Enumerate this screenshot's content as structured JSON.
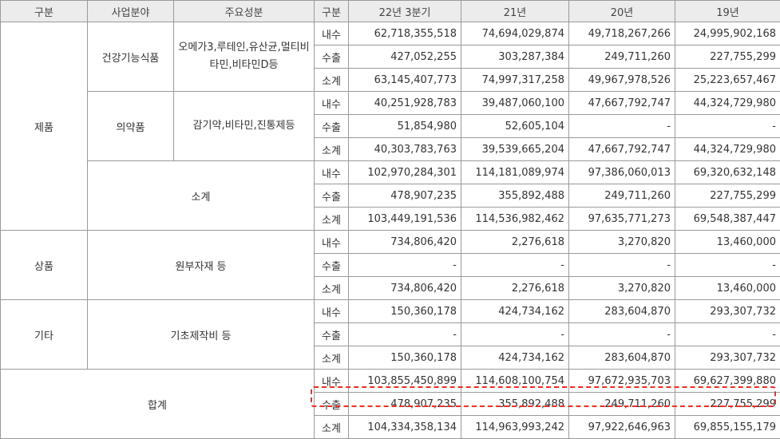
{
  "headers": [
    "구분",
    "사업분야",
    "주요성분",
    "구분",
    "22년 3분기",
    "21년",
    "20년",
    "19년"
  ],
  "groups": {
    "product": "제품",
    "goods": "상품",
    "other": "기타",
    "total": "합계"
  },
  "fields": {
    "health_food": "건강기능식품",
    "pharma": "의약품",
    "product_subtotal": "소계",
    "raw_materials": "원부자재 등",
    "basic_cost": "기초제작비 등"
  },
  "components": {
    "health_food": "오메가3,루테인,유산균,멀티비타민,비타민D등",
    "pharma": "감기약,비타민,진통제등"
  },
  "row_labels": {
    "domestic": "내수",
    "export": "수출",
    "subtotal": "소계"
  },
  "rows": [
    {
      "values": [
        "62,718,355,518",
        "74,694,029,874",
        "49,718,267,266",
        "24,995,902,168"
      ]
    },
    {
      "values": [
        "427,052,255",
        "303,287,384",
        "249,711,260",
        "227,755,299"
      ]
    },
    {
      "values": [
        "63,145,407,773",
        "74,997,317,258",
        "49,967,978,526",
        "25,223,657,467"
      ]
    },
    {
      "values": [
        "40,251,928,783",
        "39,487,060,100",
        "47,667,792,747",
        "44,324,729,980"
      ]
    },
    {
      "values": [
        "51,854,980",
        "52,605,104",
        "-",
        "-"
      ]
    },
    {
      "values": [
        "40,303,783,763",
        "39,539,665,204",
        "47,667,792,747",
        "44,324,729,980"
      ]
    },
    {
      "values": [
        "102,970,284,301",
        "114,181,089,974",
        "97,386,060,013",
        "69,320,632,148"
      ]
    },
    {
      "values": [
        "478,907,235",
        "355,892,488",
        "249,711,260",
        "227,755,299"
      ]
    },
    {
      "values": [
        "103,449,191,536",
        "114,536,982,462",
        "97,635,771,273",
        "69,548,387,447"
      ]
    },
    {
      "values": [
        "734,806,420",
        "2,276,618",
        "3,270,820",
        "13,460,000"
      ]
    },
    {
      "values": [
        "-",
        "-",
        "-",
        "-"
      ]
    },
    {
      "values": [
        "734,806,420",
        "2,276,618",
        "3,270,820",
        "13,460,000"
      ]
    },
    {
      "values": [
        "150,360,178",
        "424,734,162",
        "283,604,870",
        "293,307,732"
      ]
    },
    {
      "values": [
        "-",
        "-",
        "-",
        "-"
      ]
    },
    {
      "values": [
        "150,360,178",
        "424,734,162",
        "283,604,870",
        "293,307,732"
      ]
    },
    {
      "values": [
        "103,855,450,899",
        "114,608,100,754",
        "97,672,935,703",
        "69,627,399,880"
      ]
    },
    {
      "values": [
        "478,907,235",
        "355,892,488",
        "249,711,260",
        "227,755,299"
      ]
    },
    {
      "values": [
        "104,334,358,134",
        "114,963,993,242",
        "97,922,646,963",
        "69,855,155,179"
      ]
    }
  ]
}
